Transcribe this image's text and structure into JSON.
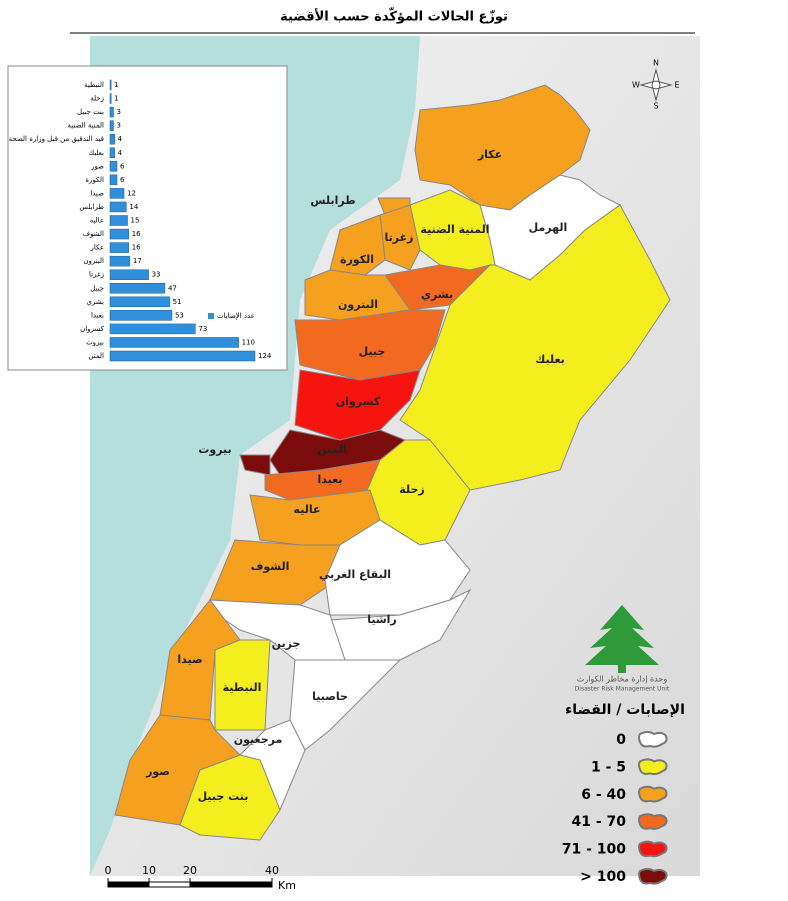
{
  "title": "توزّع الحالات المؤكّدة حسب الأقضية",
  "chart_data": {
    "type": "bar",
    "orientation": "horizontal",
    "legend": "عدد الإصابات",
    "color": "#2f8fdb",
    "categories": [
      "النبطية",
      "زحلة",
      "بنت جبيل",
      "المنية الضنية",
      "قيد التدقيق من قبل وزارة الصحة",
      "بعلبك",
      "صور",
      "الكورة",
      "صيدا",
      "طرابلس",
      "عاليه",
      "الشوف",
      "عكار",
      "البترون",
      "زغرتا",
      "جبيل",
      "بشري",
      "بعبدا",
      "كسروان",
      "بيروت",
      "المتن"
    ],
    "values": [
      1,
      1,
      3,
      3,
      4,
      4,
      6,
      6,
      12,
      14,
      15,
      16,
      16,
      17,
      33,
      47,
      51,
      53,
      73,
      110,
      124
    ]
  },
  "districts": [
    {
      "name": "عكار",
      "color": "#f5a01e"
    },
    {
      "name": "الهرمل",
      "color": "#ffffff"
    },
    {
      "name": "المنية الضنية",
      "color": "#f5ee1f"
    },
    {
      "name": "طرابلس",
      "color": "#f5a01e"
    },
    {
      "name": "زغرتا",
      "color": "#f5a01e"
    },
    {
      "name": "الكورة",
      "color": "#f5a01e"
    },
    {
      "name": "بشري",
      "color": "#f26a1f"
    },
    {
      "name": "البترون",
      "color": "#f5a01e"
    },
    {
      "name": "بعلبك",
      "color": "#f5ee1f"
    },
    {
      "name": "جبيل",
      "color": "#f26a1f"
    },
    {
      "name": "كسروان",
      "color": "#f7140f"
    },
    {
      "name": "المتن",
      "color": "#7b0c0c"
    },
    {
      "name": "بيروت",
      "color": "#7b0c0c"
    },
    {
      "name": "بعبدا",
      "color": "#f26a1f"
    },
    {
      "name": "زحلة",
      "color": "#f5ee1f"
    },
    {
      "name": "عاليه",
      "color": "#f5a01e"
    },
    {
      "name": "الشوف",
      "color": "#f5a01e"
    },
    {
      "name": "البقاع الغربي",
      "color": "#ffffff"
    },
    {
      "name": "راشيا",
      "color": "#ffffff"
    },
    {
      "name": "حاصبيا",
      "color": "#ffffff"
    },
    {
      "name": "جزين",
      "color": "#ffffff"
    },
    {
      "name": "صيدا",
      "color": "#f5a01e"
    },
    {
      "name": "النبطية",
      "color": "#f5ee1f"
    },
    {
      "name": "مرجعيون",
      "color": "#ffffff"
    },
    {
      "name": "صور",
      "color": "#f5a01e"
    },
    {
      "name": "بنت جبيل",
      "color": "#f5ee1f"
    }
  ],
  "legend": {
    "title": "الإصابات / القضاء",
    "classes": [
      {
        "label": "0",
        "color": "#ffffff"
      },
      {
        "label": "1 - 5",
        "color": "#f5ee1f"
      },
      {
        "label": "6 - 40",
        "color": "#f5a01e"
      },
      {
        "label": "41 - 70",
        "color": "#f26a1f"
      },
      {
        "label": "71 - 100",
        "color": "#f7140f"
      },
      {
        "label": "> 100",
        "color": "#7b0c0c"
      }
    ]
  },
  "scale": {
    "ticks": [
      0,
      10,
      20,
      40
    ],
    "unit": "Km"
  },
  "compass": {
    "n": "N",
    "s": "S",
    "e": "E",
    "w": "W"
  },
  "logo": {
    "arabic": "وحدة إدارة مخاطر الكوارث",
    "english": "Disaster Risk Management Unit"
  }
}
